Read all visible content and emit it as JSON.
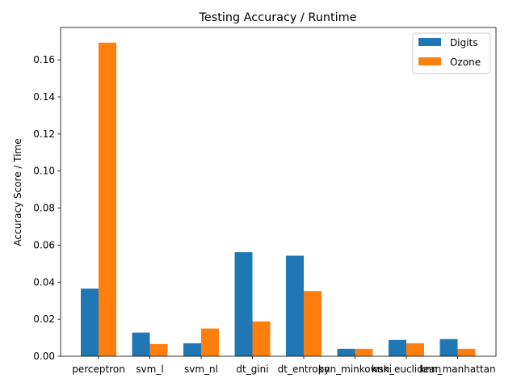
{
  "chart_data": {
    "type": "bar",
    "title": "Testing Accuracy / Runtime",
    "xlabel": "",
    "ylabel": "Accuracy Score / Time",
    "categories": [
      "perceptron",
      "svm_l",
      "svm_nl",
      "dt_gini",
      "dt_entropy",
      "knn_minkowski",
      "knn_euclidean",
      "knn_manhattan"
    ],
    "series": [
      {
        "name": "Digits",
        "color": "#1f77b4",
        "values": [
          0.0365,
          0.0128,
          0.007,
          0.0562,
          0.0543,
          0.004,
          0.0088,
          0.0093
        ]
      },
      {
        "name": "Ozone",
        "color": "#ff7f0e",
        "values": [
          0.1693,
          0.0066,
          0.015,
          0.0188,
          0.0352,
          0.004,
          0.007,
          0.004
        ]
      }
    ],
    "ylim": [
      0,
      0.1775
    ],
    "yticks": [
      "0.00",
      "0.02",
      "0.04",
      "0.06",
      "0.08",
      "0.10",
      "0.12",
      "0.14",
      "0.16"
    ],
    "legend_position": "top-right",
    "grid": false
  }
}
